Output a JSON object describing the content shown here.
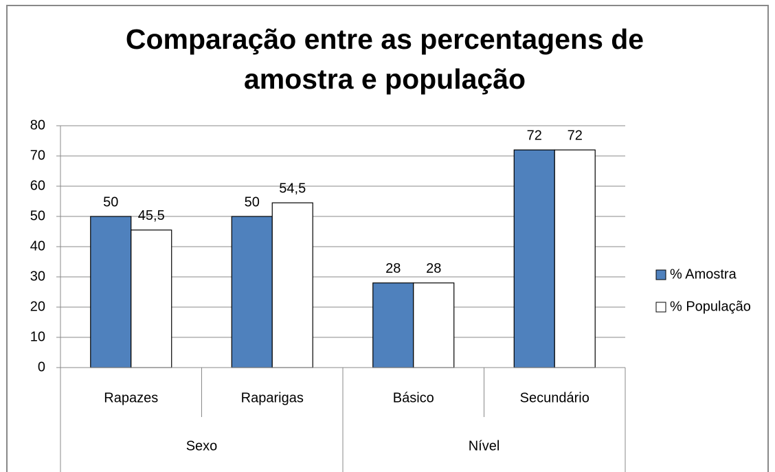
{
  "chart_data": {
    "type": "bar",
    "title": "Comparação entre as percentagens de amostra e população",
    "groups": [
      {
        "label": "Sexo",
        "categories": [
          "Rapazes",
          "Raparigas"
        ]
      },
      {
        "label": "Nível",
        "categories": [
          "Básico",
          "Secundário"
        ]
      }
    ],
    "series": [
      {
        "name": "% Amostra",
        "color": "#4f81bd",
        "values": [
          50,
          50,
          28,
          72
        ],
        "value_labels": [
          "50",
          "50",
          "28",
          "72"
        ]
      },
      {
        "name": "% População",
        "color": "#ffffff",
        "values": [
          45.5,
          54.5,
          28,
          72
        ],
        "value_labels": [
          "45,5",
          "54,5",
          "28",
          "72"
        ]
      }
    ],
    "ylim": [
      0,
      80
    ],
    "yticks": [
      0,
      10,
      20,
      30,
      40,
      50,
      60,
      70,
      80
    ],
    "grid": true,
    "legend": "right"
  }
}
